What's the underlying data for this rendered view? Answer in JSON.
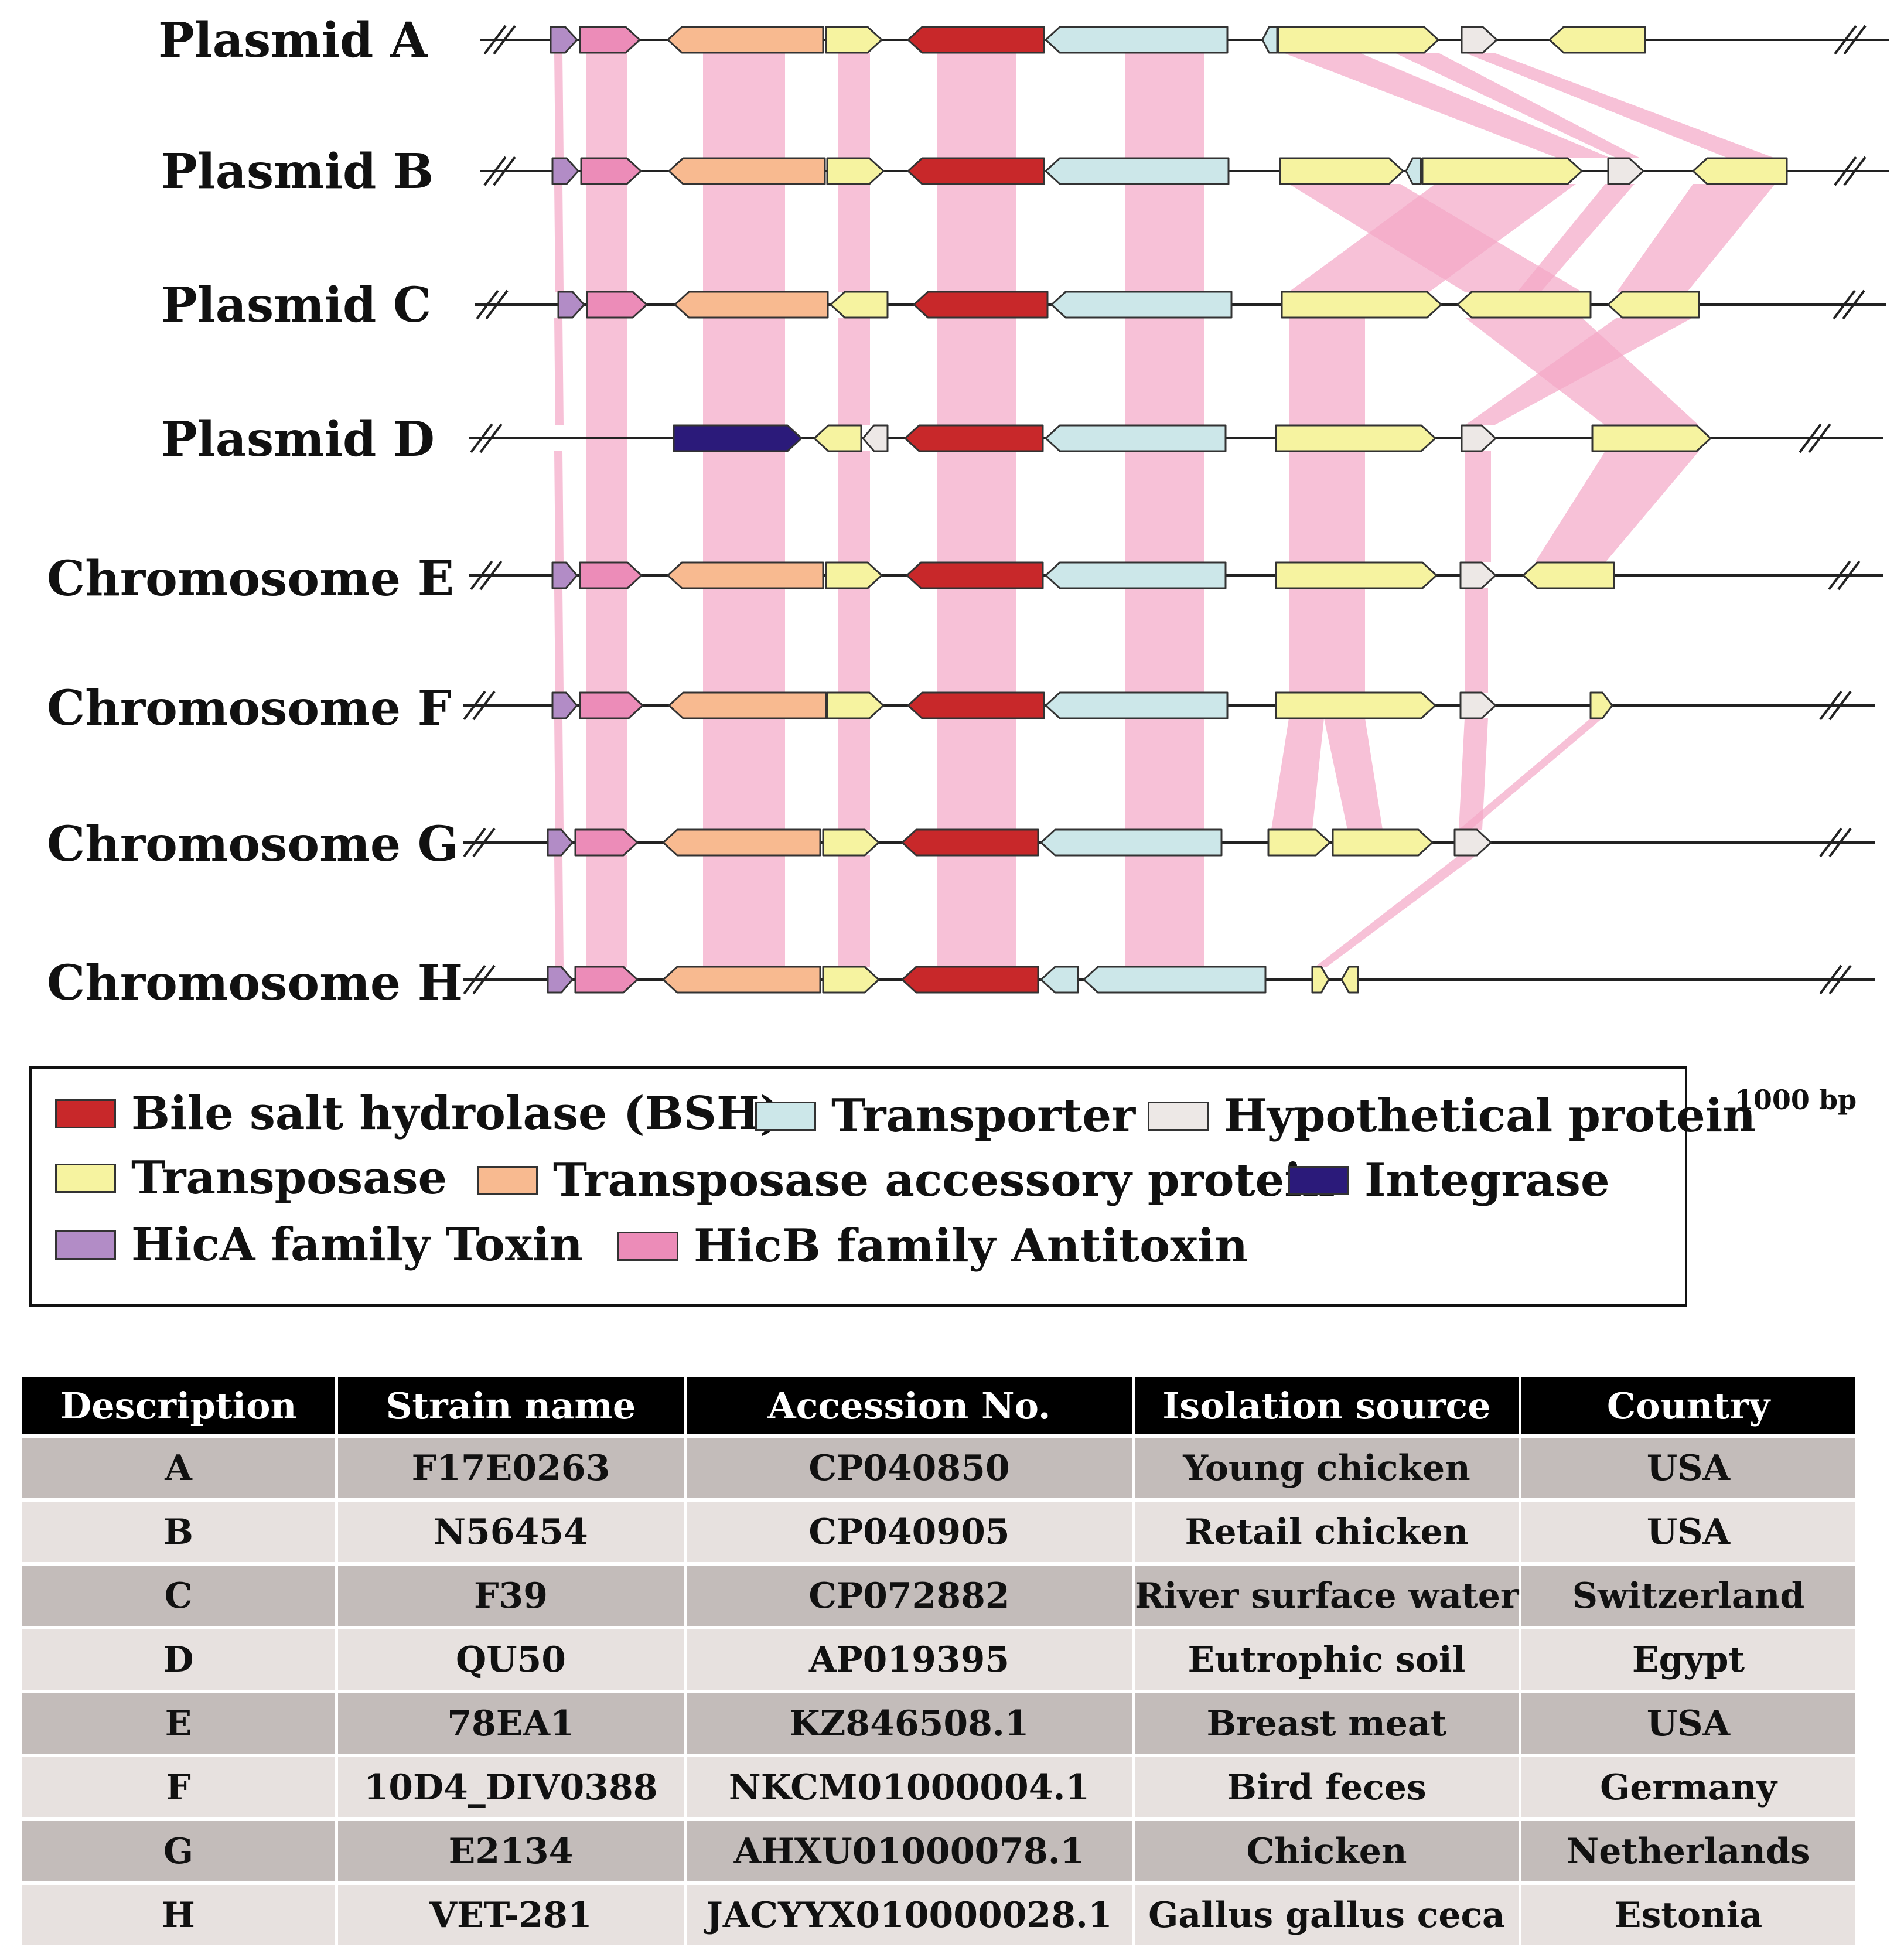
{
  "tracks": [
    {
      "label": "Plasmid A"
    },
    {
      "label": "Plasmid B"
    },
    {
      "label": "Plasmid C"
    },
    {
      "label": "Plasmid D"
    },
    {
      "label": "Chromosome E"
    },
    {
      "label": "Chromosome F"
    },
    {
      "label": "Chromosome G"
    },
    {
      "label": "Chromosome H"
    }
  ],
  "legend": {
    "items": [
      {
        "label": "Bile salt hydrolase (BSH)",
        "color": "#c8282a"
      },
      {
        "label": "Transporter",
        "color": "#cce7e9"
      },
      {
        "label": "Hypothetical protein",
        "color": "#ede8e6"
      },
      {
        "label": "Transposase",
        "color": "#f6f3a0"
      },
      {
        "label": "Transposase accessory protein",
        "color": "#f8ba90"
      },
      {
        "label": "Integrase",
        "color": "#2b1a7a"
      },
      {
        "label": "HicA family Toxin",
        "color": "#b28cc6"
      },
      {
        "label": "HicB family Antitoxin",
        "color": "#ec8cb8"
      }
    ]
  },
  "scale_bar": {
    "label": "1000 bp"
  },
  "table": {
    "headers": [
      "Description",
      "Strain name",
      "Accession No.",
      "Isolation source",
      "Country"
    ],
    "rows": [
      [
        "A",
        "F17E0263",
        "CP040850",
        "Young chicken",
        "USA"
      ],
      [
        "B",
        "N56454",
        "CP040905",
        "Retail chicken",
        "USA"
      ],
      [
        "C",
        "F39",
        "CP072882",
        "River surface water",
        "Switzerland"
      ],
      [
        "D",
        "QU50",
        "AP019395",
        "Eutrophic soil",
        "Egypt"
      ],
      [
        "E",
        "78EA1",
        "KZ846508.1",
        "Breast meat",
        "USA"
      ],
      [
        "F",
        "10D4_DIV0388",
        "NKCM01000004.1",
        "Bird feces",
        "Germany"
      ],
      [
        "G",
        "E2134",
        "AHXU01000078.1",
        "Chicken",
        "Netherlands"
      ],
      [
        "H",
        "VET-281",
        "JACYYX010000028.1",
        "Gallus gallus ceca",
        "Estonia"
      ]
    ]
  }
}
